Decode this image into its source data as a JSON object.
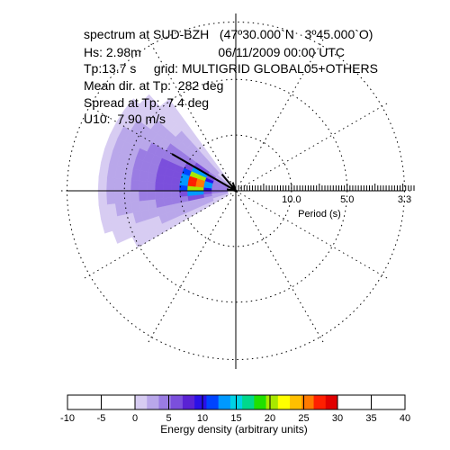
{
  "header": {
    "line1": "spectrum at SUD-BZH   (47º30.000`N   3º45.000`O)",
    "line2": "Hs: 2.98m                      06/11/2009 00:00 UTC",
    "line3": "Tp:13.7 s     grid: MULTIGRID GLOBAL05+OTHERS",
    "line4": "Mean dir. at Tp:  282 deg",
    "line5": "Spread at Tp:  7.4 deg",
    "line6": "U10:  7.90 m/s"
  },
  "chart_data": {
    "type": "polar_spectrum",
    "period_axis": {
      "label": "Period (s)",
      "tick_labels": [
        "10.0",
        "5.0",
        "3.3"
      ],
      "tick_periods_s": [
        10.0,
        5.0,
        3.3
      ]
    },
    "peak": {
      "period_s": 13.7,
      "mean_direction_deg": 282,
      "spread_deg": 7.4,
      "hs_m": 2.98
    },
    "wind": {
      "u10_ms": 7.9,
      "direction_deg": 300
    },
    "colorbar": {
      "label": "Energy density (arbitrary units)",
      "ticks": [
        "-10",
        "-5",
        "0",
        "5",
        "10",
        "15",
        "20",
        "25",
        "30",
        "35",
        "40"
      ],
      "min": -10,
      "max": 40,
      "colored_range": [
        0,
        30
      ],
      "colors": [
        "#d7ccf2",
        "#b9a7ea",
        "#9a7ce3",
        "#7b4fdc",
        "#5a22d4",
        "#2a10e8",
        "#0044ff",
        "#0099ff",
        "#00d2e6",
        "#00d88c",
        "#20e000",
        "#a8e800",
        "#ffff00",
        "#ffc000",
        "#ff7a00",
        "#ff2000",
        "#e00000"
      ]
    }
  }
}
